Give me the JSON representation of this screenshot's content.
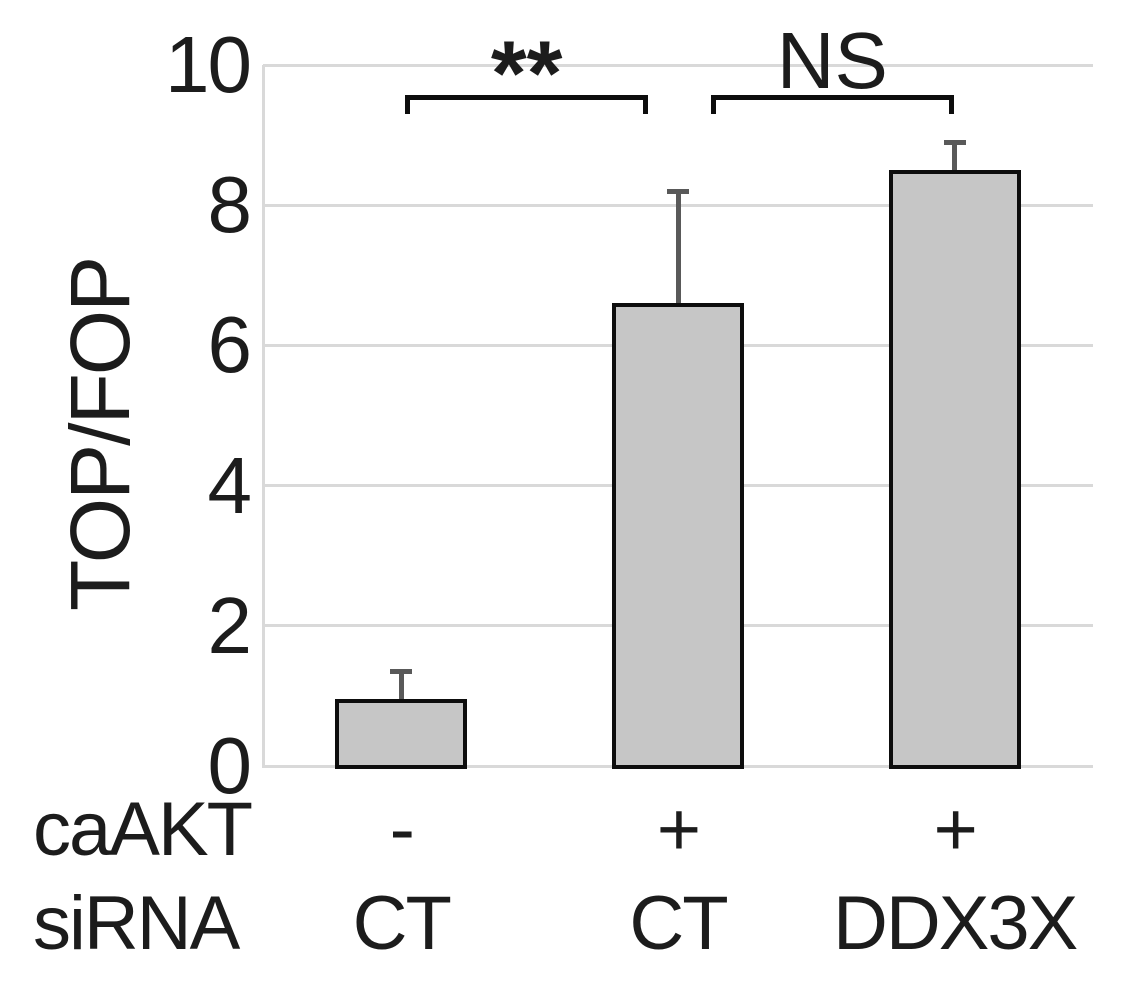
{
  "figure": {
    "background_color": "#ffffff",
    "text_color": "#1c1c1c"
  },
  "chart_data": {
    "type": "bar",
    "title": "",
    "xlabel": "",
    "ylabel": "TOP/FOP",
    "ylim": [
      0,
      10
    ],
    "yticks": [
      0,
      2,
      4,
      6,
      8,
      10
    ],
    "grid": true,
    "legend": "none",
    "categories": [
      "CT",
      "CT",
      "DDX3X"
    ],
    "values": [
      0.95,
      6.6,
      8.5
    ],
    "errors_plus": [
      0.4,
      1.6,
      0.4
    ],
    "x_annotation_rows": [
      {
        "label": "caAKT",
        "values": [
          "-",
          "+",
          "+"
        ]
      },
      {
        "label": "siRNA",
        "values": [
          "CT",
          "CT",
          "DDX3X"
        ]
      }
    ],
    "significance": [
      {
        "label": "**",
        "from_bar": 0,
        "to_bar": 1
      },
      {
        "label": "NS",
        "from_bar": 1,
        "to_bar": 2
      }
    ],
    "colors": {
      "bar_fill": "#c6c6c6",
      "bar_border": "#0d0d0d",
      "error_bar": "#595959",
      "gridline": "#d9d9d9",
      "bracket": "#0d0d0d",
      "text": "#1c1c1c"
    }
  }
}
